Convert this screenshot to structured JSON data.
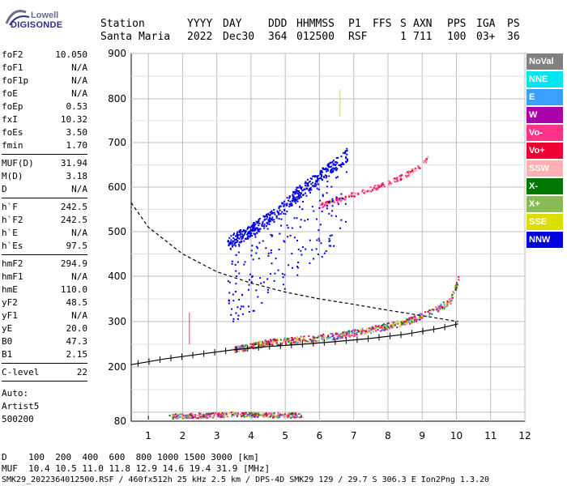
{
  "logo": {
    "brand_top": "Lowell",
    "brand_bottom": "DIGISONDE"
  },
  "header": {
    "labels": [
      "Station",
      "YYYY",
      "DAY",
      "DDD",
      "HHMMSS",
      "P1",
      "FFS",
      "S",
      "AXN",
      "PPS",
      "IGA",
      "PS"
    ],
    "values": [
      "Santa Maria",
      "2022",
      "Dec30",
      "364",
      "012500",
      "RSF",
      "",
      "1",
      "711",
      "100",
      "03+",
      "36"
    ]
  },
  "params_group1": [
    {
      "name": "foF2",
      "value": "10.050"
    },
    {
      "name": "foF1",
      "value": "N/A"
    },
    {
      "name": "foF1p",
      "value": "N/A"
    },
    {
      "name": "foE",
      "value": "N/A"
    },
    {
      "name": "foEp",
      "value": "0.53"
    },
    {
      "name": "fxI",
      "value": "10.32"
    },
    {
      "name": "foEs",
      "value": "3.50"
    },
    {
      "name": "fmin",
      "value": "1.70"
    }
  ],
  "params_group2": [
    {
      "name": "MUF(D)",
      "value": "31.94"
    },
    {
      "name": "M(D)",
      "value": "3.18"
    },
    {
      "name": "D",
      "value": "N/A"
    }
  ],
  "params_group3": [
    {
      "name": "h`F",
      "value": "242.5"
    },
    {
      "name": "h`F2",
      "value": "242.5"
    },
    {
      "name": "h`E",
      "value": "N/A"
    },
    {
      "name": "h`Es",
      "value": "97.5"
    }
  ],
  "params_group4": [
    {
      "name": "hmF2",
      "value": "294.9"
    },
    {
      "name": "hmF1",
      "value": "N/A"
    },
    {
      "name": "hmE",
      "value": "110.0"
    },
    {
      "name": "yF2",
      "value": "48.5"
    },
    {
      "name": "yF1",
      "value": "N/A"
    },
    {
      "name": "yE",
      "value": "20.0"
    },
    {
      "name": "B0",
      "value": "47.3"
    },
    {
      "name": "B1",
      "value": "2.15"
    }
  ],
  "clevel": {
    "name": "C-level",
    "value": "22"
  },
  "auto": {
    "line1": "Auto:",
    "line2": "Artist5",
    "line3": "500200"
  },
  "legend": [
    {
      "label": "NoVal",
      "bg": "#808080",
      "fg": "#ffffff"
    },
    {
      "label": "NNE",
      "bg": "#00e5ee",
      "fg": "#ffffff"
    },
    {
      "label": "E",
      "bg": "#3aa0ff",
      "fg": "#ffffff"
    },
    {
      "label": "W",
      "bg": "#aa00aa",
      "fg": "#ffffff"
    },
    {
      "label": "Vo-",
      "bg": "#ff3388",
      "fg": "#ffffff"
    },
    {
      "label": "Vo+",
      "bg": "#ee0033",
      "fg": "#ffffff"
    },
    {
      "label": "SSW",
      "bg": "#ffb0b0",
      "fg": "#ffffff"
    },
    {
      "label": "X-",
      "bg": "#007700",
      "fg": "#ffffff"
    },
    {
      "label": "X+",
      "bg": "#88bb55",
      "fg": "#ffffff"
    },
    {
      "label": "SSE",
      "bg": "#dddd00",
      "fg": "#ffffff"
    },
    {
      "label": "NNW",
      "bg": "#0000dd",
      "fg": "#ffffff"
    }
  ],
  "chart_data": {
    "type": "scatter",
    "title": "",
    "xlabel": "",
    "ylabel": "",
    "xlim": [
      0.5,
      12
    ],
    "ylim": [
      80,
      900
    ],
    "x_ticks": [
      "1",
      "2",
      "3",
      "4",
      "5",
      "6",
      "7",
      "8",
      "9",
      "10",
      "11",
      "12"
    ],
    "y_ticks": [
      "80",
      "200",
      "300",
      "400",
      "500",
      "600",
      "700",
      "800",
      "900"
    ],
    "grid": true,
    "series": [
      {
        "values": [
          [
            3.5,
            240
          ],
          [
            4.5,
            255
          ],
          [
            5.5,
            262
          ],
          [
            6.5,
            270
          ],
          [
            7.5,
            283
          ],
          [
            8.5,
            300
          ],
          [
            9.2,
            320
          ],
          [
            9.8,
            345
          ],
          [
            10.05,
            395
          ]
        ]
      },
      {
        "values": [
          [
            6.0,
            560
          ],
          [
            7.0,
            585
          ],
          [
            8.0,
            610
          ],
          [
            8.8,
            640
          ],
          [
            9.2,
            670
          ]
        ]
      },
      {
        "values": [
          [
            3.3,
            490
          ],
          [
            4.0,
            520
          ],
          [
            4.8,
            560
          ],
          [
            5.3,
            600
          ],
          [
            6.0,
            640
          ],
          [
            6.8,
            690
          ]
        ]
      },
      {
        "values": [
          [
            1.6,
            92
          ],
          [
            2.5,
            94
          ],
          [
            3.5,
            96
          ],
          [
            4.5,
            95
          ],
          [
            5.5,
            94
          ]
        ]
      },
      {
        "values": [
          [
            0.5,
            205
          ],
          [
            1.5,
            218
          ],
          [
            2.5,
            228
          ],
          [
            3.5,
            238
          ],
          [
            4.5,
            245
          ],
          [
            5.5,
            250
          ],
          [
            6.5,
            256
          ],
          [
            7.5,
            263
          ],
          [
            8.5,
            272
          ],
          [
            9.5,
            285
          ],
          [
            10.05,
            295
          ]
        ]
      },
      {
        "values": [
          [
            0.5,
            565
          ],
          [
            1.0,
            510
          ],
          [
            2.0,
            450
          ],
          [
            3.0,
            410
          ],
          [
            4.0,
            385
          ],
          [
            5.0,
            365
          ],
          [
            6.0,
            350
          ],
          [
            7.0,
            338
          ],
          [
            8.0,
            325
          ],
          [
            9.0,
            313
          ],
          [
            10.05,
            300
          ]
        ]
      }
    ]
  },
  "footer": {
    "line1": "D    100  200  400  600  800 1000 1500 3000 [km]",
    "line2": "MUF  10.4 10.5 11.0 11.8 12.9 14.6 19.4 31.9 [MHz]",
    "line3": "SMK29_2022364012500.RSF / 460fx512h 25 kHz 2.5 km / DPS-4D SMK29 129 / 29.7 S 306.3 E Ion2Png 1.3.20"
  }
}
